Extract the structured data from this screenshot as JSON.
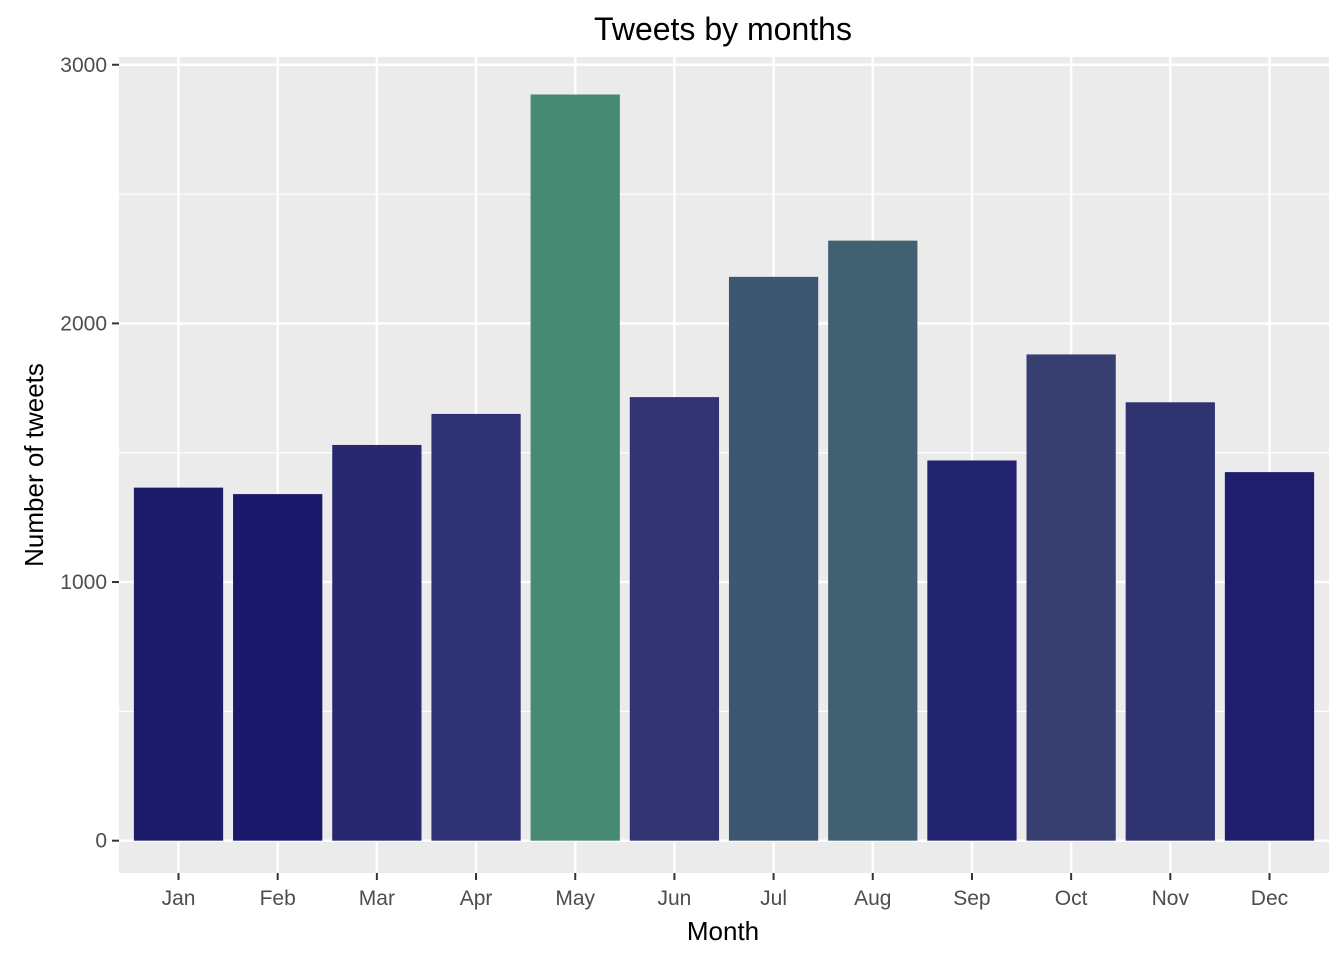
{
  "chart_data": {
    "type": "bar",
    "title": "Tweets by months",
    "xlabel": "Month",
    "ylabel": "Number of tweets",
    "categories": [
      "Jan",
      "Feb",
      "Mar",
      "Apr",
      "May",
      "Jun",
      "Jul",
      "Aug",
      "Sep",
      "Oct",
      "Nov",
      "Dec"
    ],
    "values": [
      1365,
      1340,
      1530,
      1650,
      2885,
      1715,
      2180,
      2320,
      1470,
      1880,
      1695,
      1425
    ],
    "colors": [
      "#1c1c6a",
      "#19186a",
      "#27286f",
      "#2e3272",
      "#478a73",
      "#313470",
      "#3d5672",
      "#416172",
      "#232470",
      "#363f70",
      "#2f3372",
      "#1f1e6d"
    ],
    "yticks": [
      0,
      1000,
      2000,
      3000
    ],
    "ylim": [
      -125,
      3030
    ],
    "grid": true,
    "legend": "none",
    "background": "#ebebeb",
    "gridline_color": "#ffffff"
  }
}
